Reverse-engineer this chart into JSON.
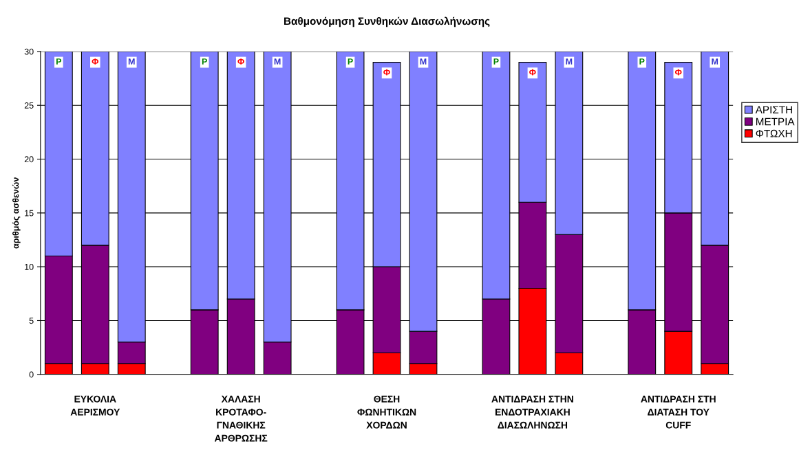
{
  "chart_data": {
    "type": "bar",
    "title": "Βαθμονόμηση Συνθηκών Διασωλήνωσης",
    "ylabel": "αριθμός ασθενών",
    "categories": [
      null,
      "ΕΥΚΟΛΙΑ\nΑΕΡΙΣΜΟΥ",
      null,
      null,
      null,
      "ΧΑΛΑΣΗ\nΚΡΟΤΑΦΟ-\nΓΝΑΘΙΚΗΣ\nΑΡΘΡΩΣΗΣ",
      null,
      null,
      null,
      "ΘΕΣΗ\nΦΩΝΗΤΙΚΩΝ\nΧΟΡΔΩΝ",
      null,
      null,
      null,
      "ΑΝΤΙΔΡΑΣΗ ΣΤΗΝ\nΕΝΔΟΤΡΑΧΙΑΚΗ\nΔΙΑΣΩΛΗΝΩΣΗ",
      null,
      null,
      null,
      "ΑΝΤΙΔΡΑΣΗ ΣΤΗ\nΔΙΑΤΑΣΗ ΤΟΥ\nCUFF",
      null
    ],
    "stacked": true,
    "series": [
      {
        "name": "ΦΤΩΧΗ",
        "color": "#ff0000",
        "values": [
          1,
          1,
          1,
          null,
          0,
          0,
          0,
          null,
          0,
          2,
          1,
          null,
          0,
          8,
          2,
          null,
          0,
          4,
          1
        ]
      },
      {
        "name": "ΜΕΤΡΙΑ",
        "color": "#800080",
        "values": [
          10,
          11,
          2,
          null,
          6,
          7,
          3,
          null,
          6,
          8,
          3,
          null,
          7,
          8,
          11,
          null,
          6,
          11,
          11
        ]
      },
      {
        "name": "ΑΡΙΣΤΗ",
        "color": "#8080ff",
        "values": [
          19,
          18,
          27,
          null,
          24,
          23,
          27,
          null,
          24,
          19,
          26,
          null,
          23,
          13,
          17,
          null,
          24,
          14,
          18
        ],
        "value_labels": [
          "Ρ",
          "Φ",
          "Μ",
          null,
          "Ρ",
          "Φ",
          "Μ",
          null,
          "Ρ",
          "Φ",
          "Μ",
          null,
          "Ρ",
          "Φ",
          "Μ",
          null,
          "Ρ",
          "Φ",
          "Μ"
        ]
      }
    ],
    "ylim": [
      0,
      30
    ],
    "yticks": [
      0,
      5,
      10,
      15,
      20,
      25,
      30
    ],
    "grid": "y",
    "legend": "right"
  }
}
